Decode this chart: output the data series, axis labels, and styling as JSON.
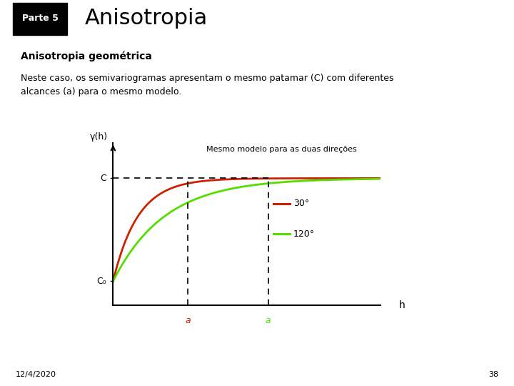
{
  "title": "Anisotropia",
  "parte_label": "Parte 5",
  "subtitle": "Anisotropia geométrica",
  "body_text": "Neste caso, os semivariogramas apresentam o mesmo patamar (C) com diferentes\nalcances (a) para o mesmo modelo.",
  "annotation": "Mesmo modelo para as duas direções",
  "legend_30": "30°",
  "legend_120": "120°",
  "xlabel": "h",
  "ylabel": "γ(h)",
  "C_label": "C",
  "C0_label": "C₀",
  "a1_label": "a",
  "a2_label": "a",
  "date_label": "12/4/2020",
  "page_label": "38",
  "color_30": "#cc2200",
  "color_120": "#55dd00",
  "background": "#ffffff",
  "C_value": 0.8,
  "C0_value": 0.15,
  "a1_value": 0.28,
  "a2_value": 0.58,
  "x_max": 1.0
}
